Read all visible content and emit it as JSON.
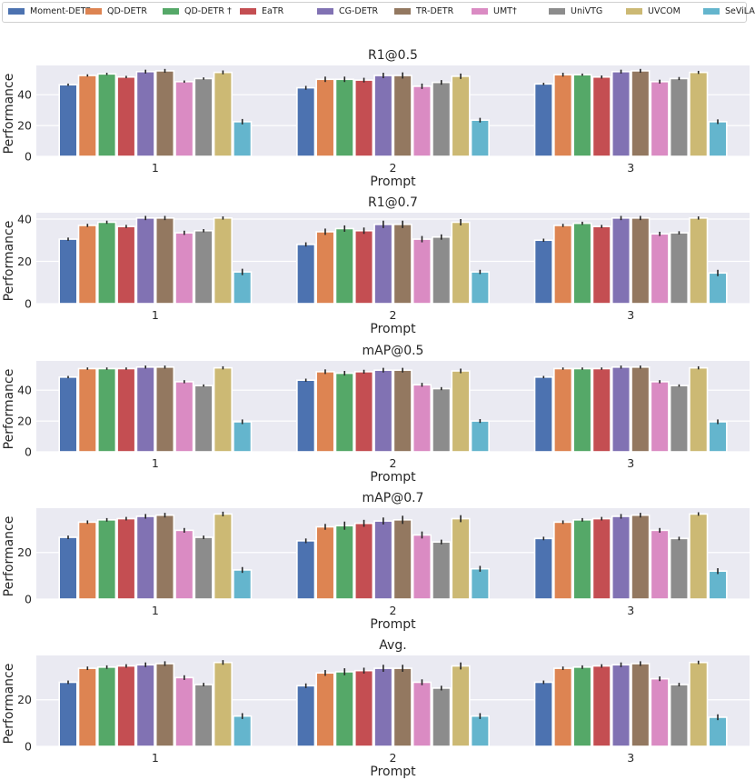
{
  "prompts": [
    "1",
    "2",
    "3"
  ],
  "chart_data": {
    "type": "bar",
    "categories": [
      "1",
      "2",
      "3"
    ],
    "xlabel": "Prompt",
    "ylabel": "Performance",
    "legend_location": "top",
    "models": [
      {
        "name": "Moment-DETR",
        "color": "#4c72b0"
      },
      {
        "name": "QD-DETR",
        "color": "#dd8452"
      },
      {
        "name": "QD-DETR †",
        "color": "#55a868"
      },
      {
        "name": "EaTR",
        "color": "#c44e52"
      },
      {
        "name": "CG-DETR",
        "color": "#8172b3"
      },
      {
        "name": "TR-DETR",
        "color": "#937860"
      },
      {
        "name": "UMT†",
        "color": "#da8bc3"
      },
      {
        "name": "UniVTG",
        "color": "#8c8c8c"
      },
      {
        "name": "UVCOM",
        "color": "#ccb974"
      },
      {
        "name": "SeViLA",
        "color": "#64b5cd"
      }
    ],
    "panels": [
      {
        "title": "R1@0.5",
        "ylim": [
          0,
          59
        ],
        "yticks": [
          0,
          20,
          40
        ],
        "values": [
          [
            46.5,
            52.5,
            53.5,
            51.5,
            55,
            55.5,
            48.5,
            50.5,
            54.5,
            22.5
          ],
          [
            44.5,
            50,
            50,
            49.5,
            52.5,
            52.5,
            45.5,
            48,
            52,
            23.5
          ],
          [
            47,
            53,
            53,
            51.5,
            55,
            55.5,
            48.5,
            50.5,
            54.5,
            22.5
          ]
        ],
        "errors": [
          [
            1.5,
            1.5,
            1.5,
            1.5,
            2.5,
            2.5,
            1.5,
            1.5,
            2.5,
            3.5
          ],
          [
            2.5,
            3.5,
            3.5,
            3,
            3.5,
            4,
            3.5,
            3,
            3.5,
            3
          ],
          [
            1.5,
            2.5,
            1.5,
            2,
            2.5,
            2.5,
            2.5,
            2,
            2,
            3
          ]
        ]
      },
      {
        "title": "R1@0.7",
        "ylim": [
          0,
          43
        ],
        "yticks": [
          0,
          20,
          40
        ],
        "values": [
          [
            30.5,
            37,
            38.5,
            36.5,
            40.5,
            40.5,
            33.5,
            34.5,
            40.5,
            15
          ],
          [
            28,
            34,
            35.5,
            34.5,
            37.5,
            37.5,
            30.5,
            31.5,
            38.5,
            15
          ],
          [
            30,
            37,
            38,
            36.5,
            40.5,
            40.5,
            33,
            33.5,
            40.5,
            14.5
          ]
        ],
        "errors": [
          [
            1.5,
            1.5,
            1.5,
            1.5,
            2,
            2,
            2,
            1.5,
            1.5,
            3
          ],
          [
            2,
            3,
            3,
            3,
            3.5,
            3.5,
            3,
            2.5,
            3,
            2
          ],
          [
            1.5,
            1.5,
            1.5,
            1.5,
            2,
            2,
            2,
            1.5,
            1.5,
            3
          ]
        ]
      },
      {
        "title": "mAP@0.5",
        "ylim": [
          0,
          59
        ],
        "yticks": [
          0,
          20,
          40
        ],
        "values": [
          [
            48.5,
            54,
            54,
            54,
            55,
            55,
            45.5,
            43,
            54.5,
            19.5
          ],
          [
            46.5,
            52,
            51,
            52,
            53,
            53,
            43.5,
            41,
            52.5,
            20
          ],
          [
            48.5,
            54,
            54,
            54,
            55,
            55,
            45.5,
            43,
            54.5,
            19.5
          ]
        ],
        "errors": [
          [
            1.5,
            1.5,
            1.5,
            1.5,
            2,
            2,
            2,
            1.5,
            2,
            3
          ],
          [
            2,
            3,
            3,
            2.5,
            3,
            3,
            2.5,
            2,
            3,
            2.5
          ],
          [
            1.5,
            1.5,
            1.5,
            1.5,
            2,
            2,
            2,
            1.5,
            2,
            3
          ]
        ]
      },
      {
        "title": "mAP@0.7",
        "ylim": [
          0,
          39
        ],
        "yticks": [
          20,
          0
        ],
        "values": [
          [
            26.5,
            33,
            34,
            34.5,
            35.5,
            36,
            29.5,
            26.5,
            36.5,
            12.5
          ],
          [
            25,
            31,
            31.5,
            32.5,
            33.5,
            34,
            27.5,
            24.5,
            34.5,
            13
          ],
          [
            26,
            33,
            34,
            34.5,
            35.5,
            36,
            29.5,
            26,
            36.5,
            12
          ]
        ],
        "errors": [
          [
            1.5,
            1.5,
            1.5,
            1.5,
            2,
            2,
            2,
            1.5,
            2,
            2.5
          ],
          [
            2,
            2.5,
            3.5,
            3,
            3,
            3.5,
            3,
            2,
            3,
            2.5
          ],
          [
            1.5,
            1.5,
            1.5,
            1.5,
            2,
            2,
            2,
            1.5,
            1.5,
            2.5
          ]
        ]
      },
      {
        "title": "Avg.",
        "ylim": [
          0,
          39
        ],
        "yticks": [
          20,
          0
        ],
        "values": [
          [
            27.5,
            33.5,
            34,
            34.5,
            35,
            35.5,
            29.5,
            26.5,
            36,
            13
          ],
          [
            26,
            31.5,
            32,
            32.5,
            33.5,
            33.5,
            27.5,
            25,
            34.5,
            13
          ],
          [
            27.5,
            33.5,
            34,
            34.5,
            35,
            35.5,
            29,
            26.5,
            36,
            12.5
          ]
        ],
        "errors": [
          [
            1.5,
            1.5,
            1.5,
            1.5,
            2,
            2,
            2,
            1.5,
            2,
            2.5
          ],
          [
            2,
            2.5,
            3,
            2.5,
            3,
            3,
            2.5,
            2,
            3,
            2.5
          ],
          [
            1.5,
            1.5,
            1.5,
            1.5,
            2,
            2,
            2,
            1.5,
            1.5,
            2.5
          ]
        ]
      }
    ]
  }
}
